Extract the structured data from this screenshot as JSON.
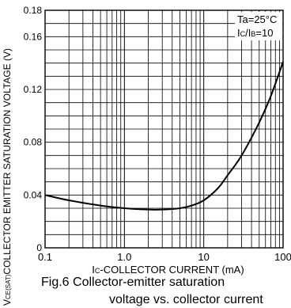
{
  "chart_data": {
    "type": "line",
    "xscale": "log",
    "xlim": [
      0.1,
      100
    ],
    "ylim": [
      0,
      0.18
    ],
    "grid": true,
    "xlabel": {
      "sub": "C",
      "main": "-COLLECTOR  CURRENT (mA)"
    },
    "ylabel": {
      "sub": "CE(SAT)",
      "main": "COLLECTOR  EMITTER  SATURATION  VOLTAGE (V)"
    },
    "xticks": [
      {
        "value": 0.1,
        "label": "0.1"
      },
      {
        "value": 1,
        "label": "1.0"
      },
      {
        "value": 10,
        "label": "10"
      },
      {
        "value": 100,
        "label": "100"
      }
    ],
    "yticks": [
      {
        "value": 0,
        "label": "0"
      },
      {
        "value": 0.04,
        "label": "0.04"
      },
      {
        "value": 0.08,
        "label": "0.08"
      },
      {
        "value": 0.12,
        "label": "0.12"
      },
      {
        "value": 0.16,
        "label": "0.16"
      },
      {
        "value": 0.18,
        "label": "0.18"
      }
    ],
    "annotation": {
      "line1": "Ta=25°C",
      "line2_sub_c": "C",
      "line2_sub_b": "B",
      "line2_value": "=10"
    },
    "series": [
      {
        "x": [
          0.1,
          0.2,
          0.5,
          1.0,
          2.0,
          3.0,
          5.0,
          7.0,
          10,
          15,
          20,
          30,
          50,
          70,
          100
        ],
        "y": [
          0.04,
          0.036,
          0.032,
          0.03,
          0.029,
          0.029,
          0.03,
          0.032,
          0.036,
          0.045,
          0.055,
          0.07,
          0.095,
          0.115,
          0.141
        ]
      }
    ]
  },
  "caption": {
    "line1": "Fig.6  Collector-emitter saturation",
    "line2": "voltage vs. collector current"
  }
}
